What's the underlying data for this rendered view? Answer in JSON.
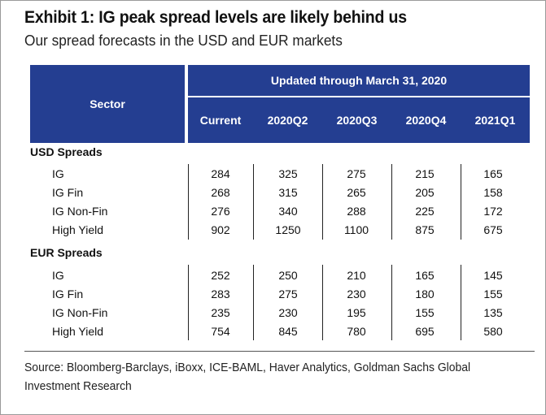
{
  "title": "Exhibit 1: IG peak spread levels are likely behind us",
  "subtitle": "Our spread forecasts in the USD and EUR markets",
  "header": {
    "sector": "Sector",
    "updated": "Updated through  March 31, 2020",
    "columns": [
      "Current",
      "2020Q2",
      "2020Q3",
      "2020Q4",
      "2021Q1"
    ]
  },
  "sections": [
    {
      "name": "USD Spreads",
      "rows": [
        {
          "label": "IG",
          "values": [
            "284",
            "325",
            "275",
            "215",
            "165"
          ]
        },
        {
          "label": "IG Fin",
          "values": [
            "268",
            "315",
            "265",
            "205",
            "158"
          ]
        },
        {
          "label": "IG Non-Fin",
          "values": [
            "276",
            "340",
            "288",
            "225",
            "172"
          ]
        },
        {
          "label": "High Yield",
          "values": [
            "902",
            "1250",
            "1100",
            "875",
            "675"
          ]
        }
      ]
    },
    {
      "name": "EUR Spreads",
      "rows": [
        {
          "label": "IG",
          "values": [
            "252",
            "250",
            "210",
            "165",
            "145"
          ]
        },
        {
          "label": "IG Fin",
          "values": [
            "283",
            "275",
            "230",
            "180",
            "155"
          ]
        },
        {
          "label": "IG Non-Fin",
          "values": [
            "235",
            "230",
            "195",
            "155",
            "135"
          ]
        },
        {
          "label": "High Yield",
          "values": [
            "754",
            "845",
            "780",
            "695",
            "580"
          ]
        }
      ]
    }
  ],
  "source": "Source: Bloomberg-Barclays, iBoxx, ICE-BAML, Haver Analytics, Goldman Sachs Global Investment Research"
}
